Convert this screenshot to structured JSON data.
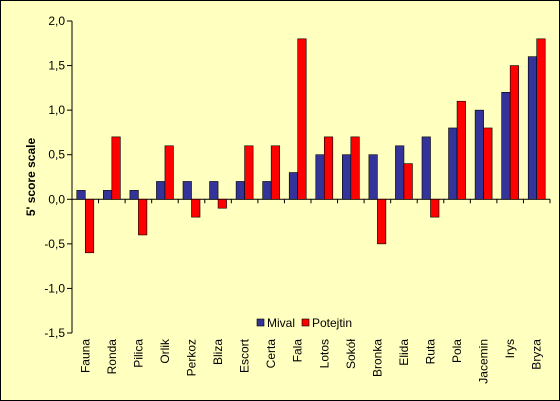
{
  "chart_data": {
    "type": "bar",
    "ylabel": "5' score scale",
    "xlabel": "",
    "title": "",
    "ylim": [
      -1.5,
      2.0
    ],
    "ytick_step": 0.5,
    "ytick_labels": [
      "-1,5",
      "-1,0",
      "-0,5",
      "0,0",
      "0,5",
      "1,0",
      "1,5",
      "2,0"
    ],
    "categories": [
      "Fauna",
      "Ronda",
      "Pilica",
      "Orlik",
      "Perkoz",
      "Bliza",
      "Escort",
      "Certa",
      "Fala",
      "Lotos",
      "Sokół",
      "Bronka",
      "Elida",
      "Ruta",
      "Pola",
      "Jacemin",
      "Irys",
      "Bryza"
    ],
    "series": [
      {
        "name": "Mival",
        "color": "#333399",
        "values": [
          0.1,
          0.1,
          0.1,
          0.2,
          0.2,
          0.2,
          0.2,
          0.2,
          0.3,
          0.5,
          0.5,
          0.5,
          0.6,
          0.7,
          0.8,
          1.0,
          1.2,
          1.6
        ]
      },
      {
        "name": "Potejtin",
        "color": "#ff0000",
        "values": [
          -0.6,
          0.7,
          -0.4,
          0.6,
          -0.2,
          -0.1,
          0.6,
          0.6,
          1.8,
          0.7,
          0.7,
          -0.5,
          0.4,
          -0.2,
          1.1,
          0.8,
          1.5,
          1.8
        ]
      }
    ],
    "legend": "bottom-right-inside",
    "grid": false
  }
}
